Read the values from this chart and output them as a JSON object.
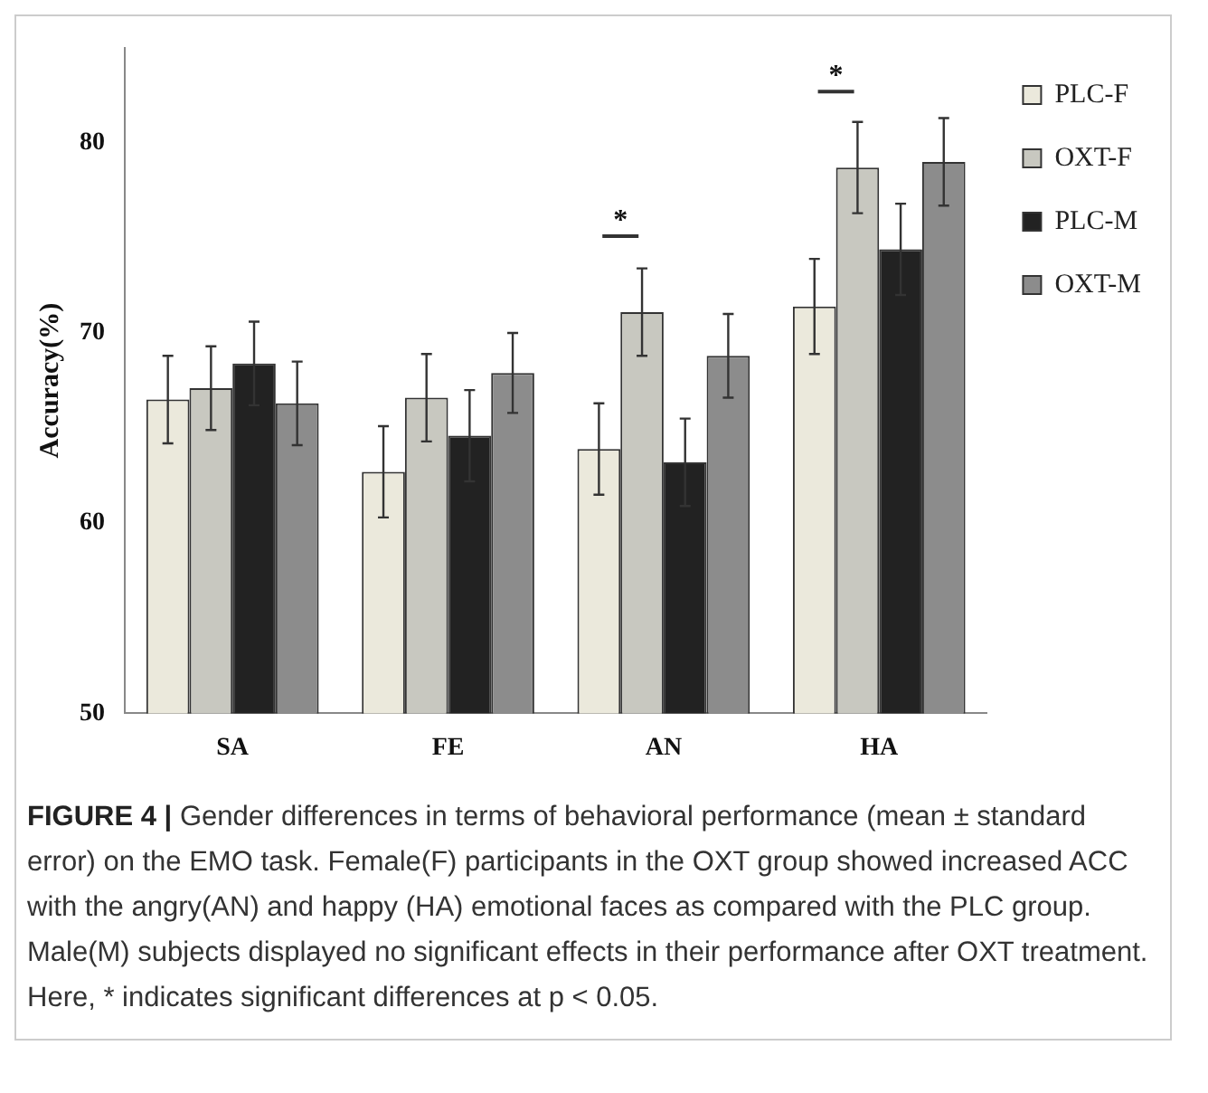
{
  "chart_data": {
    "type": "bar",
    "ylabel": "Accuracy(%)",
    "categories": [
      "SA",
      "FE",
      "AN",
      "HA"
    ],
    "series": [
      {
        "name": "PLC-F",
        "color": "#ebe9dc",
        "values": [
          66.5,
          62.7,
          63.9,
          71.4
        ],
        "errors": [
          2.3,
          2.4,
          2.4,
          2.5
        ]
      },
      {
        "name": "OXT-F",
        "color": "#c8c8c0",
        "values": [
          67.1,
          66.6,
          71.1,
          78.7
        ],
        "errors": [
          2.2,
          2.3,
          2.3,
          2.4
        ]
      },
      {
        "name": "PLC-M",
        "color": "#222222",
        "values": [
          68.4,
          64.6,
          63.2,
          74.4
        ],
        "errors": [
          2.2,
          2.4,
          2.3,
          2.4
        ]
      },
      {
        "name": "OXT-M",
        "color": "#8c8c8c",
        "values": [
          66.3,
          67.9,
          68.8,
          79.0
        ],
        "errors": [
          2.2,
          2.1,
          2.2,
          2.3
        ]
      }
    ],
    "ylim": [
      50,
      85
    ],
    "yticks": [
      50,
      60,
      70,
      80
    ],
    "grid": false,
    "legend": "top right",
    "annotations": [
      "*",
      "*",
      "FIGURE 4 | Gender differences in terms of behavioral performance (mean ± standard error) on the EMO task. Female(F) participants in the OXT group showed increased ACC with the angry(AN) and happy (HA) emotional faces as compared with the PLC group. Male(M) subjects displayed no significant effects in their performance after OXT treatment. Here, * indicates significant differences at p < 0.05."
    ]
  }
}
